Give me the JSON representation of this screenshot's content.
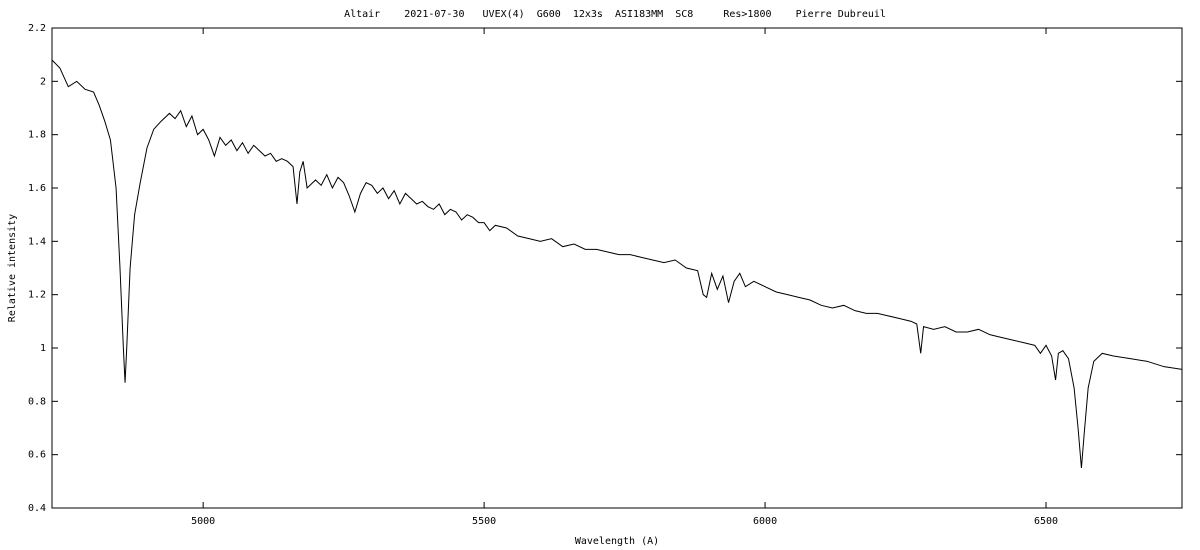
{
  "chart_data": {
    "type": "line",
    "title": "Altair    2021-07-30   UVEX(4)  G600  12x3s  ASI183MM  SC8     Res>1800    Pierre Dubreuil",
    "x_label": "Wavelength (A)",
    "y_label": "Relative intensity",
    "xlim": [
      4731,
      6742
    ],
    "ylim": [
      0.4,
      2.2
    ],
    "xticks": [
      5000,
      5500,
      6000,
      6500
    ],
    "yticks": [
      0.4,
      0.6,
      0.8,
      1,
      1.2,
      1.4,
      1.6,
      1.8,
      2,
      2.2
    ],
    "series": [
      {
        "color": "#000000",
        "x": [
          4731,
          4745,
          4760,
          4775,
          4790,
          4805,
          4815,
          4825,
          4835,
          4845,
          4852,
          4858,
          4861,
          4864,
          4870,
          4878,
          4888,
          4900,
          4912,
          4925,
          4940,
          4950,
          4960,
          4970,
          4980,
          4990,
          5000,
          5010,
          5020,
          5030,
          5040,
          5050,
          5060,
          5070,
          5080,
          5090,
          5100,
          5110,
          5120,
          5130,
          5140,
          5150,
          5160,
          5167,
          5172,
          5178,
          5185,
          5200,
          5210,
          5220,
          5230,
          5240,
          5250,
          5260,
          5270,
          5280,
          5290,
          5300,
          5310,
          5320,
          5330,
          5340,
          5350,
          5360,
          5370,
          5380,
          5390,
          5400,
          5410,
          5420,
          5430,
          5440,
          5450,
          5460,
          5470,
          5480,
          5490,
          5500,
          5510,
          5520,
          5540,
          5560,
          5580,
          5600,
          5620,
          5640,
          5660,
          5680,
          5700,
          5720,
          5740,
          5760,
          5780,
          5800,
          5820,
          5840,
          5860,
          5880,
          5890,
          5896,
          5905,
          5915,
          5925,
          5935,
          5945,
          5955,
          5965,
          5980,
          6000,
          6020,
          6040,
          6060,
          6080,
          6100,
          6120,
          6140,
          6160,
          6180,
          6200,
          6220,
          6240,
          6260,
          6270,
          6277,
          6282,
          6300,
          6320,
          6340,
          6360,
          6380,
          6400,
          6420,
          6440,
          6460,
          6480,
          6490,
          6500,
          6510,
          6517,
          6522,
          6530,
          6540,
          6550,
          6557,
          6563,
          6568,
          6575,
          6585,
          6600,
          6620,
          6650,
          6680,
          6710,
          6742
        ],
        "values": [
          2.08,
          2.05,
          1.98,
          2.0,
          1.97,
          1.96,
          1.91,
          1.85,
          1.78,
          1.6,
          1.3,
          1.0,
          0.87,
          1.0,
          1.3,
          1.5,
          1.62,
          1.75,
          1.82,
          1.85,
          1.88,
          1.86,
          1.89,
          1.83,
          1.87,
          1.8,
          1.82,
          1.78,
          1.72,
          1.79,
          1.76,
          1.78,
          1.74,
          1.77,
          1.73,
          1.76,
          1.74,
          1.72,
          1.73,
          1.7,
          1.71,
          1.7,
          1.68,
          1.54,
          1.66,
          1.7,
          1.6,
          1.63,
          1.61,
          1.65,
          1.6,
          1.64,
          1.62,
          1.57,
          1.51,
          1.58,
          1.62,
          1.61,
          1.58,
          1.6,
          1.56,
          1.59,
          1.54,
          1.58,
          1.56,
          1.54,
          1.55,
          1.53,
          1.52,
          1.54,
          1.5,
          1.52,
          1.51,
          1.48,
          1.5,
          1.49,
          1.47,
          1.47,
          1.44,
          1.46,
          1.45,
          1.42,
          1.41,
          1.4,
          1.41,
          1.38,
          1.39,
          1.37,
          1.37,
          1.36,
          1.35,
          1.35,
          1.34,
          1.33,
          1.32,
          1.33,
          1.3,
          1.29,
          1.2,
          1.19,
          1.28,
          1.22,
          1.27,
          1.17,
          1.25,
          1.28,
          1.23,
          1.25,
          1.23,
          1.21,
          1.2,
          1.19,
          1.18,
          1.16,
          1.15,
          1.16,
          1.14,
          1.13,
          1.13,
          1.12,
          1.11,
          1.1,
          1.09,
          0.98,
          1.08,
          1.07,
          1.08,
          1.06,
          1.06,
          1.07,
          1.05,
          1.04,
          1.03,
          1.02,
          1.01,
          0.98,
          1.01,
          0.97,
          0.88,
          0.98,
          0.99,
          0.96,
          0.85,
          0.7,
          0.55,
          0.68,
          0.85,
          0.95,
          0.98,
          0.97,
          0.96,
          0.95,
          0.93,
          0.92
        ]
      }
    ]
  }
}
